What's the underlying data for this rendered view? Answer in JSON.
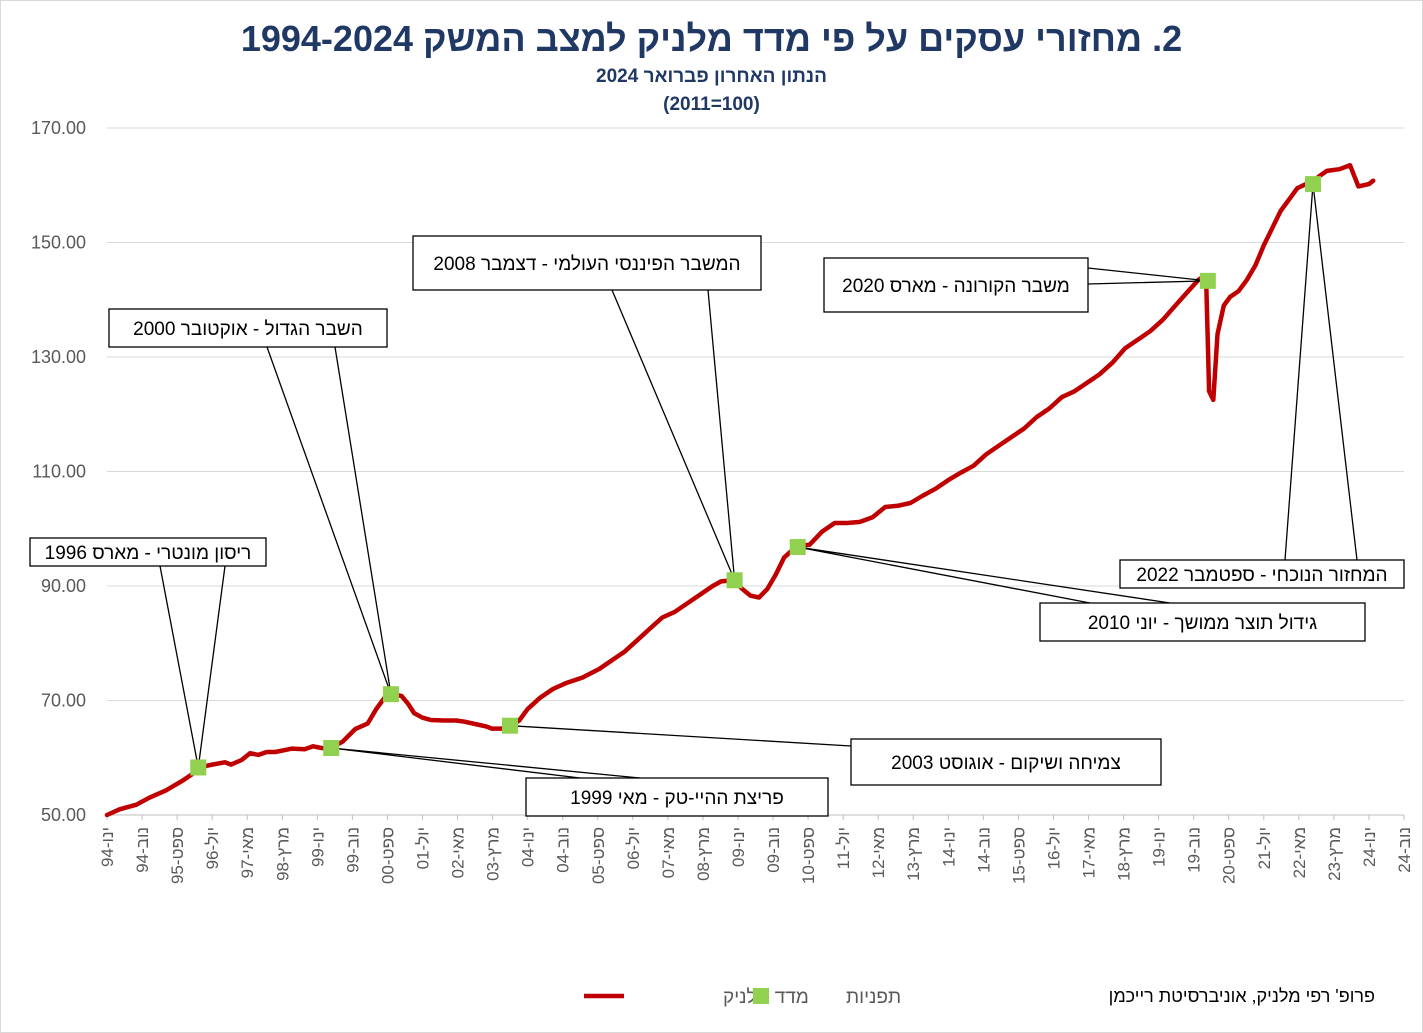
{
  "header": {
    "title": "2. מחזורי עסקים על פי מדד מלניק למצב המשק 1994-2024",
    "subtitle": "הנתון האחרון פברואר 2024",
    "subtitle2": "(2011=100)"
  },
  "footer": {
    "credit": "פרופ' רפי מלניק, אוניברסיטת רייכמן"
  },
  "colors": {
    "line": "#c00000",
    "marker": "#92d050",
    "title": "#1f3864",
    "grid": "#d9d9d9",
    "axis": "#595959"
  },
  "chart_data": {
    "type": "line",
    "title": "2. מחזורי עסקים על פי מדד מלניק למצב המשק 1994-2024",
    "subtitle": "הנתון האחרון פברואר 2024",
    "ylim": [
      50,
      170
    ],
    "yticks": [
      "50.00",
      "70.00",
      "90.00",
      "110.00",
      "130.00",
      "150.00",
      "170.00"
    ],
    "xticks": [
      "ינו-94",
      "נוב-94",
      "ספט-95",
      "יול-96",
      "מאי-97",
      "מרץ-98",
      "ינו-99",
      "נוב-99",
      "ספט-00",
      "יול-01",
      "מאי-02",
      "מרץ-03",
      "ינו-04",
      "נוב-04",
      "ספט-05",
      "יול-06",
      "מאי-07",
      "מרץ-08",
      "ינו-09",
      "נוב-09",
      "ספט-10",
      "יול-11",
      "מאי-12",
      "מרץ-13",
      "ינו-14",
      "נוב-14",
      "ספט-15",
      "יול-16",
      "מאי-17",
      "מרץ-18",
      "ינו-19",
      "נוב-19",
      "ספט-20",
      "יול-21",
      "מאי-22",
      "מרץ-23",
      "ינו-24",
      "נוב-24"
    ],
    "series": [
      {
        "name": "מדד מלניק",
        "points": [
          [
            1994.0,
            50.0
          ],
          [
            1994.3,
            51.0
          ],
          [
            1994.7,
            51.8
          ],
          [
            1995.0,
            53.0
          ],
          [
            1995.4,
            54.3
          ],
          [
            1995.8,
            56.0
          ],
          [
            1996.0,
            57.0
          ],
          [
            1996.2,
            58.3
          ],
          [
            1996.5,
            58.8
          ],
          [
            1996.8,
            59.2
          ],
          [
            1996.95,
            58.8
          ],
          [
            1997.2,
            59.6
          ],
          [
            1997.4,
            60.8
          ],
          [
            1997.6,
            60.5
          ],
          [
            1997.8,
            61.0
          ],
          [
            1998.0,
            61.0
          ],
          [
            1998.4,
            61.6
          ],
          [
            1998.7,
            61.5
          ],
          [
            1998.9,
            62.0
          ],
          [
            1999.1,
            61.7
          ],
          [
            1999.3,
            61.6
          ],
          [
            1999.6,
            62.8
          ],
          [
            1999.9,
            65.0
          ],
          [
            2000.2,
            66.0
          ],
          [
            2000.4,
            68.5
          ],
          [
            2000.6,
            70.5
          ],
          [
            2000.8,
            71.1
          ],
          [
            2001.0,
            70.8
          ],
          [
            2001.15,
            69.5
          ],
          [
            2001.3,
            67.8
          ],
          [
            2001.5,
            67.0
          ],
          [
            2001.7,
            66.6
          ],
          [
            2002.0,
            66.5
          ],
          [
            2002.3,
            66.5
          ],
          [
            2002.5,
            66.3
          ],
          [
            2002.8,
            65.8
          ],
          [
            2003.0,
            65.5
          ],
          [
            2003.15,
            65.1
          ],
          [
            2003.4,
            65.1
          ],
          [
            2003.6,
            65.6
          ],
          [
            2003.8,
            66.5
          ],
          [
            2004.0,
            68.5
          ],
          [
            2004.3,
            70.5
          ],
          [
            2004.6,
            72.0
          ],
          [
            2004.9,
            73.0
          ],
          [
            2005.3,
            74.0
          ],
          [
            2005.7,
            75.5
          ],
          [
            2006.0,
            77.0
          ],
          [
            2006.3,
            78.5
          ],
          [
            2006.6,
            80.5
          ],
          [
            2006.9,
            82.5
          ],
          [
            2007.2,
            84.5
          ],
          [
            2007.5,
            85.5
          ],
          [
            2007.8,
            87.0
          ],
          [
            2008.1,
            88.5
          ],
          [
            2008.4,
            90.0
          ],
          [
            2008.6,
            90.8
          ],
          [
            2008.9,
            91.0
          ],
          [
            2009.1,
            89.5
          ],
          [
            2009.3,
            88.3
          ],
          [
            2009.5,
            88.0
          ],
          [
            2009.7,
            89.5
          ],
          [
            2009.9,
            92.0
          ],
          [
            2010.1,
            95.0
          ],
          [
            2010.4,
            97.0
          ],
          [
            2010.7,
            97.2
          ],
          [
            2011.0,
            99.5
          ],
          [
            2011.3,
            101.0
          ],
          [
            2011.6,
            101.0
          ],
          [
            2011.9,
            101.2
          ],
          [
            2012.2,
            102.0
          ],
          [
            2012.5,
            103.8
          ],
          [
            2012.8,
            104.0
          ],
          [
            2013.1,
            104.5
          ],
          [
            2013.4,
            105.8
          ],
          [
            2013.7,
            107.0
          ],
          [
            2014.0,
            108.5
          ],
          [
            2014.3,
            109.8
          ],
          [
            2014.6,
            111.0
          ],
          [
            2014.9,
            113.0
          ],
          [
            2015.2,
            114.5
          ],
          [
            2015.5,
            116.0
          ],
          [
            2015.8,
            117.5
          ],
          [
            2016.1,
            119.5
          ],
          [
            2016.4,
            121.0
          ],
          [
            2016.7,
            123.0
          ],
          [
            2017.0,
            124.0
          ],
          [
            2017.3,
            125.5
          ],
          [
            2017.6,
            127.0
          ],
          [
            2017.9,
            129.0
          ],
          [
            2018.2,
            131.5
          ],
          [
            2018.5,
            133.0
          ],
          [
            2018.8,
            134.5
          ],
          [
            2019.1,
            136.5
          ],
          [
            2019.4,
            139.0
          ],
          [
            2019.7,
            141.5
          ],
          [
            2019.95,
            143.5
          ],
          [
            2020.05,
            144.0
          ],
          [
            2020.13,
            143.3
          ],
          [
            2020.2,
            124.0
          ],
          [
            2020.3,
            122.5
          ],
          [
            2020.4,
            134.0
          ],
          [
            2020.55,
            139.0
          ],
          [
            2020.7,
            140.5
          ],
          [
            2020.9,
            141.5
          ],
          [
            2021.1,
            143.5
          ],
          [
            2021.3,
            146.0
          ],
          [
            2021.5,
            149.5
          ],
          [
            2021.7,
            152.5
          ],
          [
            2021.9,
            155.5
          ],
          [
            2022.1,
            157.5
          ],
          [
            2022.3,
            159.5
          ],
          [
            2022.5,
            160.2
          ],
          [
            2022.65,
            160.2
          ],
          [
            2022.8,
            161.5
          ],
          [
            2023.0,
            162.5
          ],
          [
            2023.3,
            162.8
          ],
          [
            2023.55,
            163.5
          ],
          [
            2023.75,
            159.8
          ],
          [
            2024.0,
            160.2
          ],
          [
            2024.1,
            160.8
          ]
        ]
      },
      {
        "name": "תפניות",
        "points": [
          [
            1996.17,
            58.3
          ],
          [
            1999.33,
            61.7
          ],
          [
            2000.75,
            71.1
          ],
          [
            2003.58,
            65.6
          ],
          [
            2008.92,
            91.0
          ],
          [
            2010.42,
            96.8
          ],
          [
            2020.17,
            143.3
          ],
          [
            2022.67,
            160.2
          ]
        ]
      }
    ],
    "annotations": [
      {
        "text": "ריסון מונטרי - מארס 1996",
        "point": 0
      },
      {
        "text": "פריצת ההיי-טק - מאי 1999",
        "point": 1
      },
      {
        "text": "השבר הגדול - אוקטובר 2000",
        "point": 2
      },
      {
        "text": "צמיחה ושיקום - אוגוסט 2003",
        "point": 3
      },
      {
        "text": "המשבר הפיננסי העולמי - דצמבר 2008",
        "point": 4
      },
      {
        "text": "גידול תוצר ממושך - יוני 2010",
        "point": 5
      },
      {
        "text": "משבר הקורונה - מארס 2020",
        "point": 6
      },
      {
        "text": "המחזור הנוכחי - ספטמבר 2022",
        "point": 7
      }
    ],
    "legend": {
      "position": "bottom",
      "items": [
        "מדד מלניק",
        "תפניות"
      ]
    },
    "grid": true
  }
}
